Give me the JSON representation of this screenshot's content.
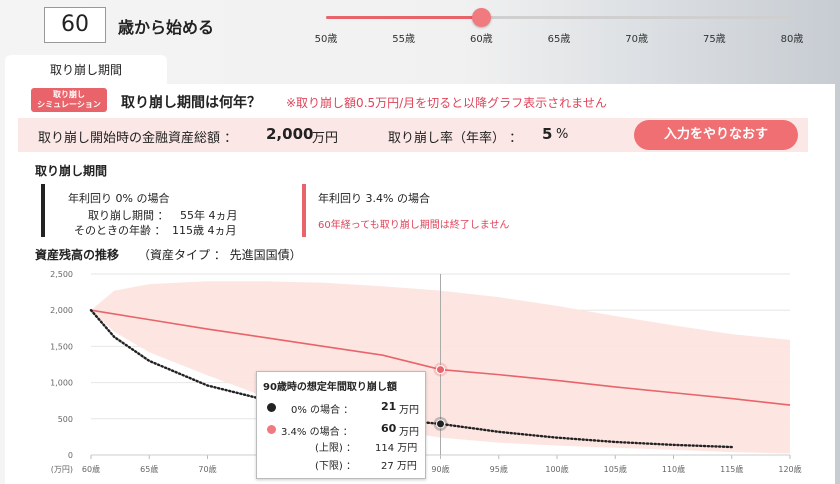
{
  "header": {
    "age_value": "60",
    "age_suffix": "歳から始める",
    "slider": {
      "ticks": [
        "50歳",
        "55歳",
        "60歳",
        "65歳",
        "70歳",
        "75歳",
        "80歳"
      ],
      "selected_index": 2,
      "accent": "#e8646a"
    }
  },
  "tab": {
    "label": "取り崩し期間"
  },
  "sim": {
    "badge_line1": "取り崩し",
    "badge_line2": "シミュレーション",
    "question": "取り崩し期間は何年？",
    "note": "※取り崩し額0.5万円/月を切ると以降グラフ表示されません"
  },
  "inputs": {
    "assets_label": "取り崩し開始時の金融資産総額 ：",
    "assets_value": "2,000",
    "assets_unit": "万円",
    "rate_label": "取り崩し率（年率） ：",
    "rate_value": "5",
    "rate_unit": "%",
    "redo_label": "入力をやりなおす"
  },
  "period": {
    "title": "取り崩し期間",
    "case0_title": "年利回り 0% の場合",
    "case0_period_label": "取り崩し期間 ：",
    "case0_period_value": "55年 4ヵ月",
    "case0_age_label": "そのときの年齢 ：",
    "case0_age_value": "115歳 4ヵ月",
    "case34_title": "年利回り 3.4% の場合",
    "case34_note": "60年経っても取り崩し期間は終了しません"
  },
  "chart_section": {
    "title": "資産残高の推移",
    "subtitle": "（資産タイプ ： 先進国国債）"
  },
  "chart_data": {
    "type": "line",
    "y_unit_label": "(万円)",
    "ylim": [
      0,
      2500
    ],
    "y_ticks": [
      "0",
      "500",
      "1,000",
      "1,500",
      "2,000",
      "2,500"
    ],
    "xlim": [
      60,
      120
    ],
    "x_ticks": [
      "60歳",
      "65歳",
      "70歳",
      "75歳",
      "80歳",
      "85歳",
      "90歳",
      "95歳",
      "100歳",
      "105歳",
      "110歳",
      "115歳",
      "120歳"
    ],
    "grid": true,
    "series": [
      {
        "color": "#e8646a",
        "x": [
          60,
          65,
          70,
          75,
          80,
          85,
          90,
          95,
          100,
          105,
          110,
          115,
          120
        ],
        "y": [
          2000,
          1870,
          1740,
          1620,
          1500,
          1380,
          1180,
          1110,
          1030,
          940,
          860,
          780,
          690
        ]
      },
      {
        "color": "#222222",
        "style": "dotted",
        "x": [
          60,
          62,
          65,
          70,
          75,
          80,
          85,
          90,
          95,
          100,
          105,
          110,
          115
        ],
        "y": [
          2000,
          1630,
          1300,
          960,
          760,
          600,
          500,
          430,
          320,
          240,
          180,
          140,
          110
        ]
      }
    ],
    "band": {
      "color": "#fde3df",
      "x": [
        60,
        62,
        65,
        70,
        75,
        80,
        85,
        90,
        95,
        100,
        105,
        110,
        115,
        120
      ],
      "upper": [
        2000,
        2270,
        2360,
        2400,
        2400,
        2380,
        2330,
        2270,
        2180,
        2060,
        1920,
        1790,
        1670,
        1590
      ],
      "lower": [
        2000,
        1700,
        1420,
        1100,
        800,
        560,
        370,
        240,
        170,
        130,
        100,
        70,
        40,
        20
      ]
    },
    "crosshair_x": 90,
    "markers": [
      {
        "x": 90,
        "y": 1180,
        "color": "#e8646a"
      },
      {
        "x": 90,
        "y": 430,
        "color": "#222222"
      }
    ]
  },
  "tooltip": {
    "title": "90歳時の想定年間取り崩し額",
    "row0_label": "0% の場合 ：",
    "row0_value": "21",
    "row0_unit": "万円",
    "row34_label": "3.4% の場合 ：",
    "row34_value": "60",
    "row34_unit": "万円",
    "upper_label": "(上限) ：",
    "upper_value": "114 万円",
    "lower_label": "(下限) ：",
    "lower_value": "27 万円"
  }
}
